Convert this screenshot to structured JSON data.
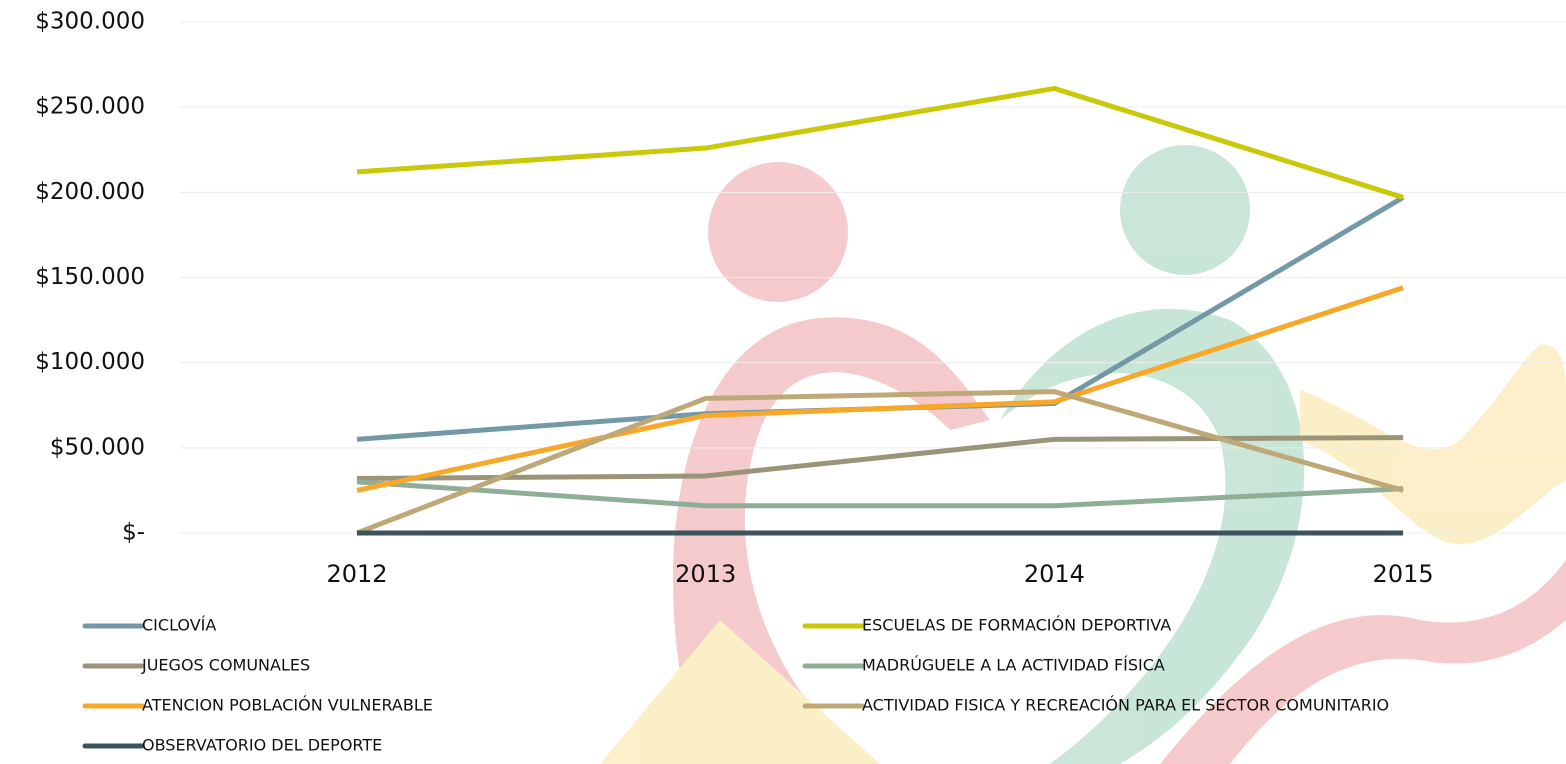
{
  "chart_data": {
    "type": "line",
    "categories": [
      "2012",
      "2013",
      "2014",
      "2015"
    ],
    "series": [
      {
        "name": "CICLOVÍA",
        "color": "#7398a6",
        "values": [
          55000,
          70000,
          76000,
          197000
        ]
      },
      {
        "name": "ESCUELAS DE FORMACIÓN DEPORTIVA",
        "color": "#c9c90a",
        "values": [
          212000,
          226000,
          261000,
          197000
        ]
      },
      {
        "name": "JUEGOS COMUNALES",
        "color": "#9a9478",
        "values": [
          32000,
          33500,
          55000,
          56000
        ]
      },
      {
        "name": "MADRÚGUELE A LA ACTIVIDAD FÍSICA",
        "color": "#8fae98",
        "values": [
          30000,
          16000,
          16000,
          26000
        ]
      },
      {
        "name": "ATENCION POBLACIÓN VULNERABLE",
        "color": "#f7a829",
        "values": [
          25000,
          69000,
          77000,
          144000
        ]
      },
      {
        "name": "ACTIVIDAD FISICA Y RECREACIÓN PARA EL SECTOR COMUNITARIO",
        "color": "#bfa878",
        "values": [
          0,
          79000,
          83000,
          25000
        ]
      },
      {
        "name": "OBSERVATORIO DEL DEPORTE",
        "color": "#3c535d",
        "values": [
          0,
          0,
          0,
          0
        ]
      }
    ],
    "ylim": [
      0,
      300000
    ],
    "yticks": [
      {
        "value": 0,
        "label": "$-"
      },
      {
        "value": 50000,
        "label": "$50.000"
      },
      {
        "value": 100000,
        "label": "$100.000"
      },
      {
        "value": 150000,
        "label": "$150.000"
      },
      {
        "value": 200000,
        "label": "$200.000"
      },
      {
        "value": 250000,
        "label": "$250.000"
      },
      {
        "value": 300000,
        "label": "$300.000"
      }
    ],
    "grid": true
  }
}
